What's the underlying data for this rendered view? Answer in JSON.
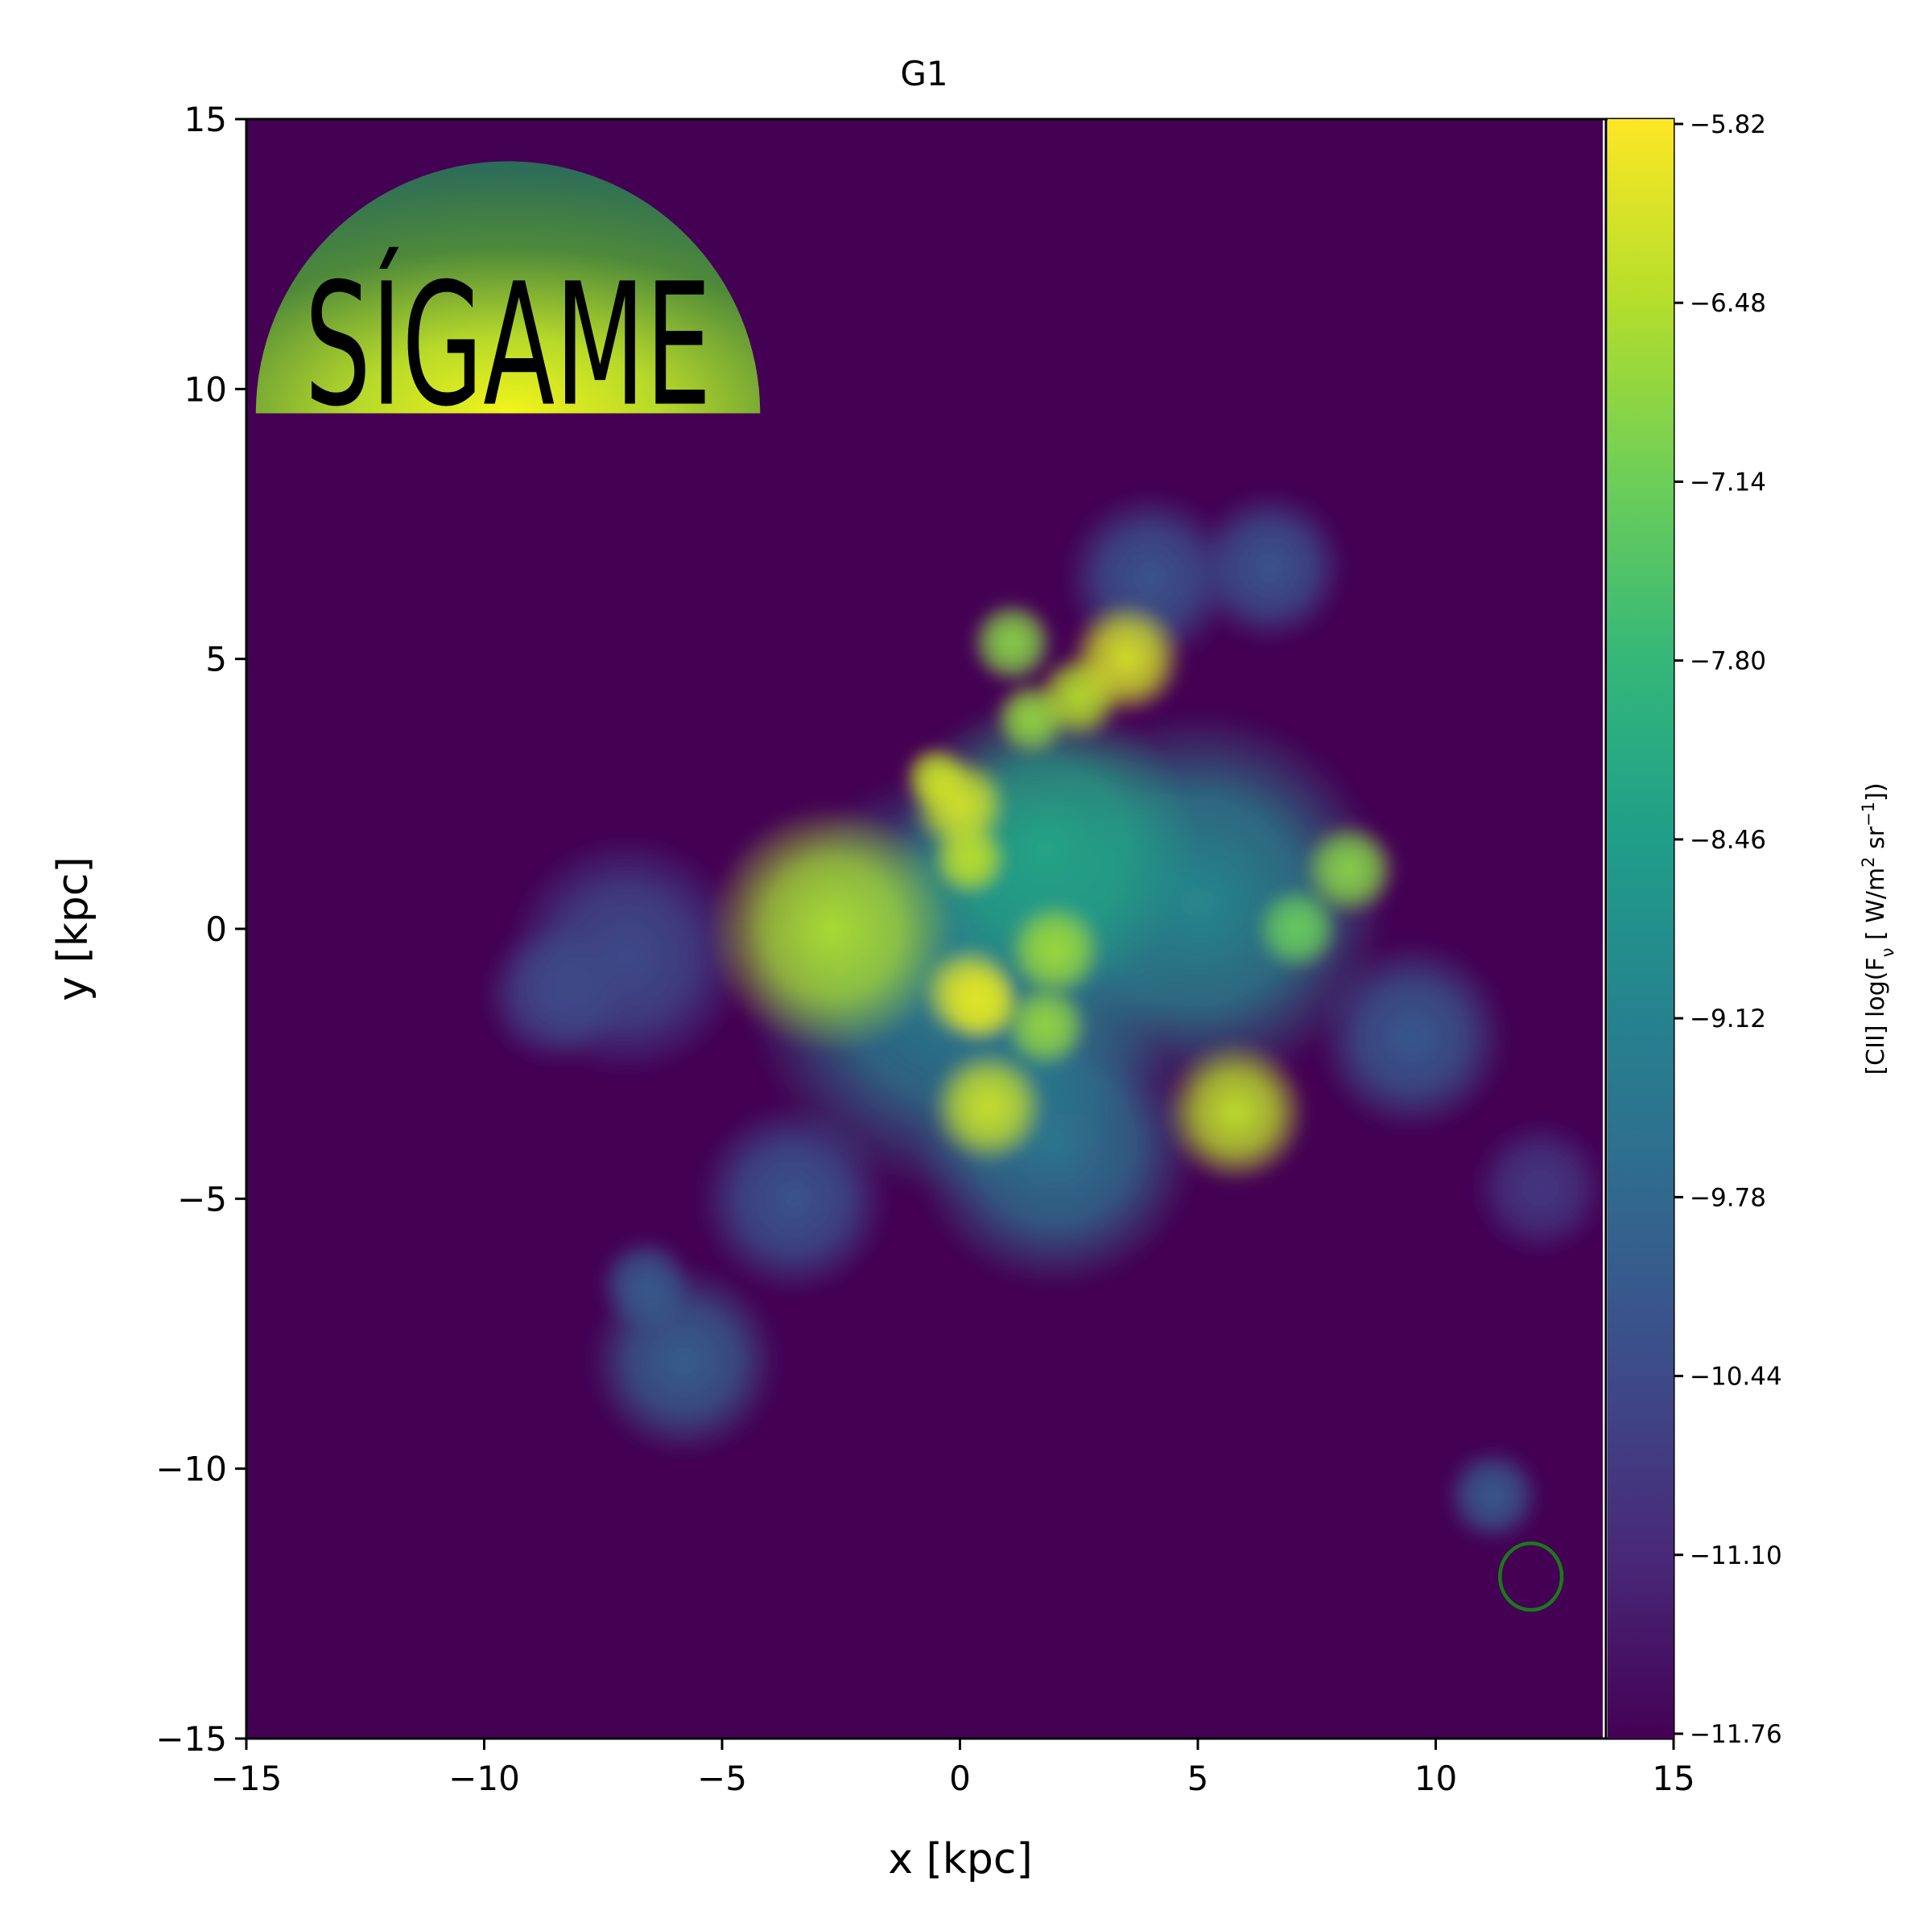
{
  "chart_data": {
    "type": "heatmap",
    "title": "G1",
    "xlabel": "x [kpc]",
    "ylabel": "y [kpc]",
    "xlim": [
      -15,
      15
    ],
    "ylim": [
      -15,
      15
    ],
    "x_ticks": [
      -15,
      -10,
      -5,
      0,
      5,
      10,
      15
    ],
    "y_ticks": [
      -15,
      -10,
      -5,
      0,
      5,
      10,
      15
    ],
    "x_tick_labels": [
      "−15",
      "−10",
      "−5",
      "0",
      "5",
      "10",
      "15"
    ],
    "y_tick_labels": [
      "−15",
      "−10",
      "−5",
      "0",
      "5",
      "10",
      "15"
    ],
    "grid": false,
    "colormap": "viridis",
    "colorbar": {
      "label_prefix": "[CII] log(F",
      "label_sub": "ν",
      "label_mid": " [ W/m",
      "label_sup1": "2",
      "label_mid2": " sr",
      "label_sup2": "−1",
      "label_suffix": "])",
      "vmin": -11.76,
      "vmax": -5.82,
      "ticks": [
        -5.82,
        -6.48,
        -7.14,
        -7.8,
        -8.46,
        -9.12,
        -9.78,
        -10.44,
        -11.1,
        -11.76
      ],
      "tick_labels": [
        "−5.82",
        "−6.48",
        "−7.14",
        "−7.80",
        "−8.46",
        "−9.12",
        "−9.78",
        "−10.44",
        "−11.10",
        "−11.76"
      ],
      "colors": [
        "#440154",
        "#482878",
        "#3e4989",
        "#31688e",
        "#26828e",
        "#1f9e89",
        "#35b779",
        "#6ece58",
        "#b5de2b",
        "#fde725"
      ]
    },
    "background_color": "#440154",
    "emission_features": [
      {
        "x": -2.7,
        "y": 0.0,
        "r": 2.6,
        "value": -6.6
      },
      {
        "x": 0.0,
        "y": 2.3,
        "r": 1.0,
        "value": -6.2
      },
      {
        "x": 0.2,
        "y": 1.3,
        "r": 0.8,
        "value": -6.4
      },
      {
        "x": 0.2,
        "y": -1.2,
        "r": 1.0,
        "value": -6.1
      },
      {
        "x": 0.5,
        "y": -1.4,
        "r": 0.8,
        "value": -6.2
      },
      {
        "x": 0.6,
        "y": -3.3,
        "r": 1.2,
        "value": -6.3
      },
      {
        "x": -0.5,
        "y": 2.8,
        "r": 0.7,
        "value": -6.4
      },
      {
        "x": 3.5,
        "y": 5.0,
        "r": 1.2,
        "value": -6.2
      },
      {
        "x": 2.5,
        "y": 4.3,
        "r": 0.9,
        "value": -6.5
      },
      {
        "x": 1.5,
        "y": 3.9,
        "r": 0.8,
        "value": -6.8
      },
      {
        "x": 1.1,
        "y": 5.3,
        "r": 0.9,
        "value": -6.9
      },
      {
        "x": 2.0,
        "y": -0.4,
        "r": 1.0,
        "value": -6.7
      },
      {
        "x": 1.8,
        "y": -1.8,
        "r": 0.9,
        "value": -6.8
      },
      {
        "x": 5.8,
        "y": -3.4,
        "r": 1.5,
        "value": -6.4
      },
      {
        "x": 8.2,
        "y": 1.1,
        "r": 1.0,
        "value": -6.9
      },
      {
        "x": 7.1,
        "y": 0.0,
        "r": 0.9,
        "value": -7.2
      },
      {
        "x": 1.8,
        "y": 1.5,
        "r": 3.2,
        "value": -8.3
      },
      {
        "x": 5.0,
        "y": 0.5,
        "r": 4.0,
        "value": -9.0
      },
      {
        "x": 0.0,
        "y": -1.0,
        "r": 4.5,
        "value": -9.2
      },
      {
        "x": 2.0,
        "y": -4.0,
        "r": 3.0,
        "value": -9.5
      },
      {
        "x": 6.5,
        "y": 6.7,
        "r": 1.6,
        "value": -10.2
      },
      {
        "x": 4.0,
        "y": 6.5,
        "r": 1.8,
        "value": -10.2
      },
      {
        "x": -7.0,
        "y": -0.5,
        "r": 2.5,
        "value": -10.4
      },
      {
        "x": -8.5,
        "y": -1.2,
        "r": 1.5,
        "value": -10.5
      },
      {
        "x": -5.8,
        "y": -8.0,
        "r": 2.0,
        "value": -10.0
      },
      {
        "x": -6.6,
        "y": -6.6,
        "r": 1.0,
        "value": -10.1
      },
      {
        "x": 11.2,
        "y": -10.5,
        "r": 1.0,
        "value": -10.1
      },
      {
        "x": 12.2,
        "y": -4.8,
        "r": 1.4,
        "value": -10.8
      },
      {
        "x": 9.5,
        "y": -2.0,
        "r": 2.0,
        "value": -10.1
      },
      {
        "x": -3.5,
        "y": -5.0,
        "r": 2.0,
        "value": -10.2
      }
    ],
    "beam": {
      "x": 12.0,
      "y": -12.0,
      "rx": 0.65,
      "ry": 0.7,
      "color": "#1a7a1a"
    }
  },
  "logo": {
    "text": "SÍGAME",
    "center_x": -9.5,
    "base_y": 9.55,
    "radius": 5.3
  }
}
